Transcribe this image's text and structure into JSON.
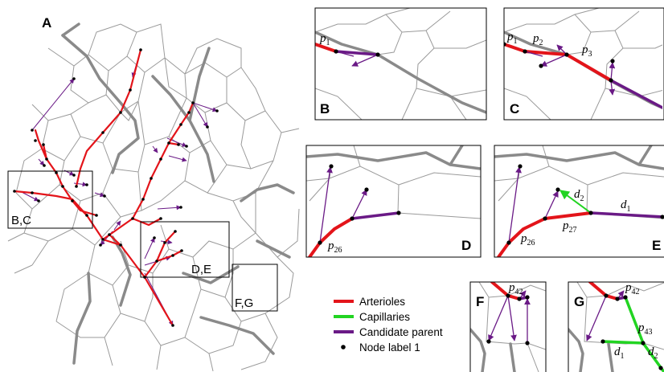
{
  "panels": {
    "A": {
      "letter": "A"
    },
    "B": {
      "letter": "B"
    },
    "C": {
      "letter": "C"
    },
    "D": {
      "letter": "D"
    },
    "E": {
      "letter": "E"
    },
    "F": {
      "letter": "F"
    },
    "G": {
      "letter": "G"
    }
  },
  "regions": {
    "bc": "B,C",
    "de": "D,E",
    "fg": "F,G"
  },
  "labels": {
    "p1": {
      "base": "p",
      "sub": "1"
    },
    "p2": {
      "base": "p",
      "sub": "2"
    },
    "p3": {
      "base": "p",
      "sub": "3"
    },
    "p26": {
      "base": "p",
      "sub": "26"
    },
    "p27": {
      "base": "p",
      "sub": "27"
    },
    "p42": {
      "base": "p",
      "sub": "42"
    },
    "p43": {
      "base": "p",
      "sub": "43"
    },
    "d1": {
      "base": "d",
      "sub": "1"
    },
    "d2": {
      "base": "d",
      "sub": "2"
    }
  },
  "legend": {
    "arterioles": "Arterioles",
    "capillaries": "Capillaries",
    "candidate_parent": "Candidate parent",
    "node_label": "Node label 1"
  },
  "colors": {
    "arterioles": "#e3141a",
    "capillaries": "#22d422",
    "candidate_parent": "#6a1a86",
    "vessel_network": "#8a8a8a",
    "node": "#000000"
  }
}
